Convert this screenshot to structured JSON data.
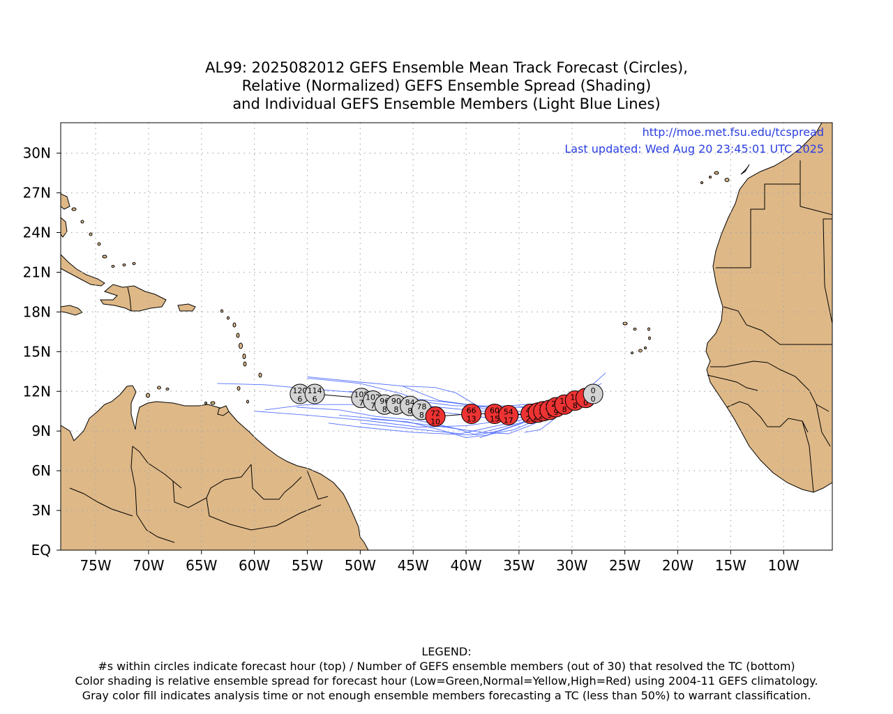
{
  "title": {
    "line1": "AL99: 2025082012 GEFS Ensemble Mean Track Forecast (Circles),",
    "line2": "Relative (Normalized) GEFS Ensemble Spread (Shading)",
    "line3": "and Individual GEFS Ensemble Members (Light Blue Lines)"
  },
  "url": "http://moe.met.fsu.edu/tcspread",
  "last_updated": "Last updated: Wed Aug 20 23:45:01 UTC 2025",
  "legend": {
    "heading": "LEGEND:",
    "line1": "#s within circles indicate forecast hour (top) / Number of GEFS ensemble members (out of 30) that resolved the TC (bottom)",
    "line2": "Color shading is relative ensemble spread for forecast hour (Low=Green,Normal=Yellow,High=Red) using 2004-11 GEFS climatology.",
    "line3": "Gray color fill indicates analysis time or not enough ensemble members forecasting a TC (less than 50%) to warrant classification."
  },
  "map": {
    "projection": "cylindrical",
    "lon_range": [
      -78.3,
      -5.4
    ],
    "lat_range": [
      0,
      32.3
    ],
    "land_color": "#deb887",
    "member_color": "#4060ff",
    "gray_color": "#d3d3d3",
    "red_color": "#ee3333",
    "lat_ticks": [
      {
        "value": 0,
        "label": "EQ"
      },
      {
        "value": 3,
        "label": "3N"
      },
      {
        "value": 6,
        "label": "6N"
      },
      {
        "value": 9,
        "label": "9N"
      },
      {
        "value": 12,
        "label": "12N"
      },
      {
        "value": 15,
        "label": "15N"
      },
      {
        "value": 18,
        "label": "18N"
      },
      {
        "value": 21,
        "label": "21N"
      },
      {
        "value": 24,
        "label": "24N"
      },
      {
        "value": 27,
        "label": "27N"
      },
      {
        "value": 30,
        "label": "30N"
      }
    ],
    "lon_ticks": [
      {
        "value": -75,
        "label": "75W"
      },
      {
        "value": -70,
        "label": "70W"
      },
      {
        "value": -65,
        "label": "65W"
      },
      {
        "value": -60,
        "label": "60W"
      },
      {
        "value": -55,
        "label": "55W"
      },
      {
        "value": -50,
        "label": "50W"
      },
      {
        "value": -45,
        "label": "45W"
      },
      {
        "value": -40,
        "label": "40W"
      },
      {
        "value": -35,
        "label": "35W"
      },
      {
        "value": -30,
        "label": "30W"
      },
      {
        "value": -25,
        "label": "25W"
      },
      {
        "value": -20,
        "label": "20W"
      },
      {
        "value": -15,
        "label": "15W"
      },
      {
        "value": -10,
        "label": "10W"
      }
    ]
  },
  "track": [
    {
      "hour": "0",
      "members": "0",
      "lon": -28.0,
      "lat": 11.8,
      "fill": "gray"
    },
    {
      "hour": "6",
      "members": "0",
      "lon": -28.7,
      "lat": 11.5,
      "fill": "red"
    },
    {
      "hour": "12",
      "members": "8",
      "lon": -29.7,
      "lat": 11.3,
      "fill": "red"
    },
    {
      "hour": "18",
      "members": "8",
      "lon": -30.7,
      "lat": 11.0,
      "fill": "red"
    },
    {
      "hour": "24",
      "members": "9",
      "lon": -31.5,
      "lat": 10.8,
      "fill": "red"
    },
    {
      "hour": "30",
      "members": "9",
      "lon": -32.1,
      "lat": 10.6,
      "fill": "red"
    },
    {
      "hour": "36",
      "members": "20",
      "lon": -32.7,
      "lat": 10.5,
      "fill": "red"
    },
    {
      "hour": "42",
      "members": "22",
      "lon": -33.2,
      "lat": 10.4,
      "fill": "red"
    },
    {
      "hour": "48",
      "members": "23",
      "lon": -33.9,
      "lat": 10.3,
      "fill": "red"
    },
    {
      "hour": "54",
      "members": "17",
      "lon": -36.0,
      "lat": 10.2,
      "fill": "red"
    },
    {
      "hour": "60",
      "members": "15",
      "lon": -37.3,
      "lat": 10.3,
      "fill": "red"
    },
    {
      "hour": "66",
      "members": "13",
      "lon": -39.5,
      "lat": 10.3,
      "fill": "red"
    },
    {
      "hour": "72",
      "members": "10",
      "lon": -42.9,
      "lat": 10.1,
      "fill": "red"
    },
    {
      "hour": "78",
      "members": "8",
      "lon": -44.2,
      "lat": 10.6,
      "fill": "gray"
    },
    {
      "hour": "84",
      "members": "8",
      "lon": -45.3,
      "lat": 10.9,
      "fill": "gray"
    },
    {
      "hour": "90",
      "members": "8",
      "lon": -46.6,
      "lat": 11.0,
      "fill": "gray"
    },
    {
      "hour": "96",
      "members": "8",
      "lon": -47.7,
      "lat": 11.0,
      "fill": "gray"
    },
    {
      "hour": "102",
      "members": "7",
      "lon": -48.8,
      "lat": 11.3,
      "fill": "gray"
    },
    {
      "hour": "108",
      "members": "7",
      "lon": -49.9,
      "lat": 11.5,
      "fill": "gray"
    },
    {
      "hour": "114",
      "members": "6",
      "lon": -54.3,
      "lat": 11.8,
      "fill": "gray"
    },
    {
      "hour": "120",
      "members": "6",
      "lon": -55.7,
      "lat": 11.8,
      "fill": "gray"
    }
  ],
  "ensemble_members": [
    [
      [
        -26.8,
        13.4
      ],
      [
        -28.5,
        12.2
      ],
      [
        -31.0,
        11.0
      ],
      [
        -34.0,
        10.3
      ],
      [
        -38.0,
        10.0
      ],
      [
        -42.0,
        10.4
      ],
      [
        -46.0,
        11.8
      ],
      [
        -50.0,
        12.6
      ],
      [
        -55.0,
        13.0
      ]
    ],
    [
      [
        -27.2,
        12.6
      ],
      [
        -29.5,
        11.6
      ],
      [
        -32.0,
        10.6
      ],
      [
        -35.5,
        9.9
      ],
      [
        -40.0,
        9.4
      ],
      [
        -44.5,
        9.3
      ],
      [
        -49.5,
        9.8
      ],
      [
        -55.0,
        10.2
      ],
      [
        -60.0,
        10.5
      ]
    ],
    [
      [
        -27.5,
        12.3
      ],
      [
        -30.0,
        11.3
      ],
      [
        -33.0,
        10.2
      ],
      [
        -36.5,
        9.5
      ],
      [
        -40.5,
        8.8
      ],
      [
        -43.0,
        9.0
      ],
      [
        -46.5,
        9.3
      ],
      [
        -50.0,
        9.6
      ]
    ],
    [
      [
        -27.8,
        12.0
      ],
      [
        -31.0,
        10.6
      ],
      [
        -35.0,
        9.6
      ],
      [
        -39.5,
        8.7
      ],
      [
        -45.0,
        8.9
      ],
      [
        -50.0,
        9.3
      ],
      [
        -53.0,
        9.6
      ]
    ],
    [
      [
        -28.0,
        12.1
      ],
      [
        -31.5,
        10.9
      ],
      [
        -35.5,
        10.4
      ],
      [
        -38.5,
        10.7
      ],
      [
        -41.0,
        11.9
      ],
      [
        -43.0,
        12.3
      ],
      [
        -46.0,
        12.4
      ]
    ],
    [
      [
        -28.0,
        12.1
      ],
      [
        -31.0,
        10.5
      ],
      [
        -34.0,
        9.4
      ],
      [
        -36.0,
        8.8
      ],
      [
        -38.5,
        8.9
      ],
      [
        -42.0,
        9.3
      ],
      [
        -47.0,
        9.8
      ],
      [
        -52.0,
        10.2
      ]
    ],
    [
      [
        -28.2,
        11.9
      ],
      [
        -30.5,
        11.2
      ],
      [
        -33.5,
        10.9
      ],
      [
        -37.0,
        10.7
      ],
      [
        -42.0,
        11.2
      ],
      [
        -47.0,
        11.6
      ],
      [
        -51.0,
        12.0
      ]
    ],
    [
      [
        -28.0,
        12.0
      ],
      [
        -30.0,
        11.3
      ],
      [
        -32.5,
        10.3
      ],
      [
        -35.0,
        9.5
      ],
      [
        -38.0,
        8.7
      ],
      [
        -40.0,
        8.5
      ],
      [
        -42.5,
        9.1
      ],
      [
        -45.5,
        9.7
      ],
      [
        -49.0,
        9.9
      ]
    ],
    [
      [
        -28.3,
        11.8
      ],
      [
        -31.2,
        11.0
      ],
      [
        -34.5,
        10.8
      ],
      [
        -38.0,
        10.8
      ],
      [
        -42.5,
        11.3
      ],
      [
        -46.0,
        12.4
      ],
      [
        -50.0,
        12.7
      ],
      [
        -55.0,
        13.1
      ]
    ],
    [
      [
        -27.5,
        12.4
      ],
      [
        -30.5,
        11.0
      ],
      [
        -34.0,
        9.8
      ],
      [
        -37.0,
        9.0
      ],
      [
        -39.0,
        8.7
      ],
      [
        -41.0,
        9.2
      ],
      [
        -44.5,
        9.8
      ],
      [
        -48.5,
        10.1
      ],
      [
        -52.0,
        10.6
      ],
      [
        -56.0,
        10.8
      ]
    ],
    [
      [
        -27.7,
        12.2
      ],
      [
        -30.0,
        11.1
      ],
      [
        -32.5,
        10.1
      ],
      [
        -35.5,
        9.1
      ],
      [
        -37.5,
        8.8
      ],
      [
        -38.7,
        8.5
      ]
    ],
    [
      [
        -28.0,
        12.0
      ],
      [
        -31.5,
        11.2
      ],
      [
        -36.0,
        10.9
      ],
      [
        -41.0,
        10.9
      ],
      [
        -46.0,
        11.4
      ],
      [
        -50.0,
        11.9
      ],
      [
        -55.0,
        12.2
      ],
      [
        -59.0,
        12.5
      ],
      [
        -63.5,
        12.6
      ]
    ],
    [
      [
        -28.0,
        11.9
      ],
      [
        -31.0,
        10.8
      ],
      [
        -35.0,
        10.3
      ],
      [
        -40.0,
        10.6
      ],
      [
        -45.0,
        11.0
      ],
      [
        -50.0,
        11.0
      ],
      [
        -55.0,
        11.0
      ],
      [
        -59.0,
        10.6
      ]
    ],
    [
      [
        -28.4,
        11.8
      ],
      [
        -30.5,
        10.7
      ],
      [
        -32.0,
        9.7
      ],
      [
        -33.0,
        9.1
      ],
      [
        -34.5,
        8.9
      ]
    ]
  ]
}
